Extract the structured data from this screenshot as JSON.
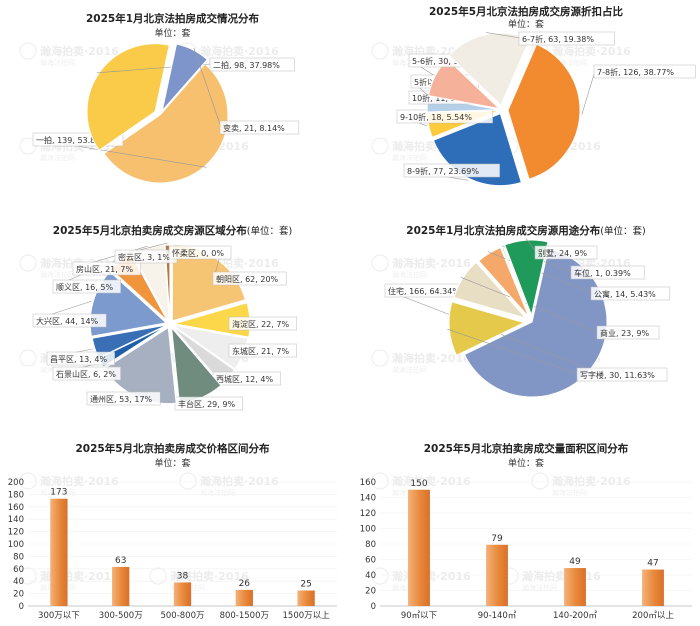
{
  "watermark": {
    "text": "瀚海拍卖·2016",
    "sub": "瀚海法拍网"
  },
  "charts": [
    {
      "type": "pie",
      "title": "2025年1月北京法拍房成交情况分布",
      "subtitle": "单位：套",
      "slices": [
        {
          "label": "一拍, 139, 53.88%",
          "value": 139,
          "color": "#F6C06F"
        },
        {
          "label": "二拍, 98, 37.98%",
          "value": 98,
          "color": "#FACB48"
        },
        {
          "label": "变卖, 21, 8.14%",
          "value": 21,
          "color": "#7D95CA"
        }
      ]
    },
    {
      "type": "pie",
      "title": "2025年5月北京法拍房成交房源折扣占比",
      "subtitle": "单位：套",
      "slices": [
        {
          "label": "7-8折, 126, 38.77%",
          "value": 126,
          "color": "#F28A30"
        },
        {
          "label": "8-9折, 77, 23.69%",
          "value": 77,
          "color": "#2E6DB8"
        },
        {
          "label": "9-10折, 18, 5.54%",
          "value": 18,
          "color": "#FFCB3D"
        },
        {
          "label": "10折, 11, 3%",
          "value": 11,
          "color": "#B5CFE8"
        },
        {
          "label": "5折以下, 0, 0%",
          "value": 0,
          "color": "#D9D9D9"
        },
        {
          "label": "5-6折, 30, 9.23%",
          "value": 30,
          "color": "#F6B19B"
        },
        {
          "label": "6-7折, 63, 19.38%",
          "value": 63,
          "color": "#F1EDE4"
        }
      ]
    },
    {
      "type": "pie",
      "title": "2025年5月北京拍卖房成交房源区域分布",
      "subtitle": "(单位：套)",
      "slices": [
        {
          "label": "朝阳区, 62, 20%",
          "value": 62,
          "color": "#F6C574"
        },
        {
          "label": "海淀区, 22, 7%",
          "value": 22,
          "color": "#FCD74A"
        },
        {
          "label": "东城区, 21, 7%",
          "value": 21,
          "color": "#EEEEEE"
        },
        {
          "label": "西城区, 12, 4%",
          "value": 12,
          "color": "#DADADA"
        },
        {
          "label": "丰台区, 29, 9%",
          "value": 29,
          "color": "#6F8C7F"
        },
        {
          "label": "通州区, 53, 17%",
          "value": 53,
          "color": "#A7B0C0"
        },
        {
          "label": "石景山区, 6, 2%",
          "value": 6,
          "color": "#1E5FA8"
        },
        {
          "label": "昌平区, 13, 4%",
          "value": 13,
          "color": "#3A6FB5"
        },
        {
          "label": "大兴区, 44, 14%",
          "value": 44,
          "color": "#7C9ACD"
        },
        {
          "label": "顺义区, 16, 5%",
          "value": 16,
          "color": "#F1953D"
        },
        {
          "label": "房山区, 21, 7%",
          "value": 21,
          "color": "#F7F2EA"
        },
        {
          "label": "密云区, 3, 1%",
          "value": 3,
          "color": "#B27742"
        },
        {
          "label": "怀柔区, 0, 0%",
          "value": 0,
          "color": "#CCCCCC"
        }
      ]
    },
    {
      "type": "pie",
      "title": "2025年1月北京法拍房成交房源用途分布",
      "subtitle": "(单位：套)",
      "slices": [
        {
          "label": "住宅, 166, 64.34%",
          "value": 166,
          "color": "#8296C6"
        },
        {
          "label": "写字楼, 30, 11.63%",
          "value": 30,
          "color": "#E5C94A"
        },
        {
          "label": "商业, 23, 9%",
          "value": 23,
          "color": "#E8DEC4"
        },
        {
          "label": "公寓, 14, 5.43%",
          "value": 14,
          "color": "#F4A869"
        },
        {
          "label": "车位, 1, 0.39%",
          "value": 1,
          "color": "#DDDDDD"
        },
        {
          "label": "别墅, 24, 9%",
          "value": 24,
          "color": "#1F9A5A"
        }
      ]
    },
    {
      "type": "bar",
      "title": "2025年5月北京拍卖房成交价格区间分布",
      "subtitle": "单位：套",
      "categories": [
        "300万以下",
        "300-500万",
        "500-800万",
        "800-1500万",
        "1500万以上"
      ],
      "values": [
        173,
        63,
        38,
        26,
        25
      ],
      "ylim": [
        0,
        200
      ],
      "yticks": [
        "0",
        "20",
        "40",
        "60",
        "80",
        "100",
        "120",
        "140",
        "160",
        "180",
        "200"
      ],
      "color": "#E8883A"
    },
    {
      "type": "bar",
      "title": "2025年5月北京拍卖房成交量面积区间分布",
      "subtitle": "单位：套",
      "categories": [
        "90㎡以下",
        "90-140㎡",
        "140-200㎡",
        "200㎡以上"
      ],
      "values": [
        150,
        79,
        49,
        47
      ],
      "ylim": [
        0,
        160
      ],
      "yticks": [
        "0",
        "20",
        "40",
        "60",
        "80",
        "100",
        "120",
        "140",
        "160"
      ],
      "color": "#E8883A"
    }
  ]
}
